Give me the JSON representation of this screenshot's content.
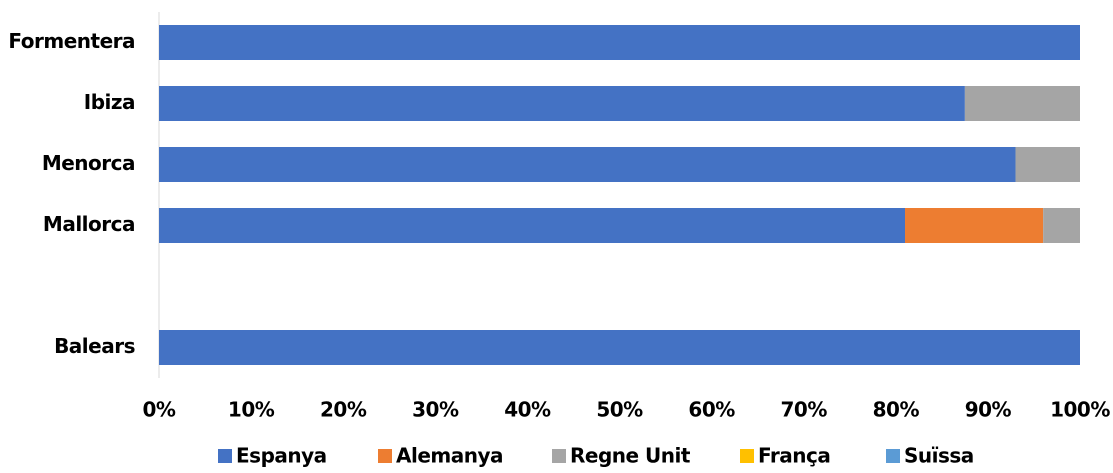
{
  "chart_data": {
    "type": "stacked-barh",
    "categories": [
      "Formentera",
      "Ibiza",
      "Menorca",
      "Mallorca",
      null,
      "Balears"
    ],
    "series": [
      {
        "name": "Espanya",
        "color": "#4472c4",
        "values": [
          100,
          87.5,
          93,
          81,
          null,
          100
        ]
      },
      {
        "name": "Alemanya",
        "color": "#ed7d31",
        "values": [
          0,
          0,
          0,
          15,
          null,
          0
        ]
      },
      {
        "name": "Regne Unit",
        "color": "#a5a5a5",
        "values": [
          0,
          12.5,
          7,
          4,
          null,
          0
        ]
      },
      {
        "name": "França",
        "color": "#ffc000",
        "values": [
          0,
          0,
          0,
          0,
          null,
          0
        ]
      },
      {
        "name": "Suïssa",
        "color": "#5b9bd5",
        "values": [
          0,
          0,
          0,
          0,
          null,
          0
        ]
      }
    ],
    "xlim": [
      0,
      100
    ],
    "xticks": [
      {
        "value": 0,
        "label": "0%"
      },
      {
        "value": 10,
        "label": "10%"
      },
      {
        "value": 20,
        "label": "20%"
      },
      {
        "value": 30,
        "label": "30%"
      },
      {
        "value": 40,
        "label": "40%"
      },
      {
        "value": 50,
        "label": "50%"
      },
      {
        "value": 60,
        "label": "60%"
      },
      {
        "value": 70,
        "label": "70%"
      },
      {
        "value": 80,
        "label": "80%"
      },
      {
        "value": 90,
        "label": "90%"
      },
      {
        "value": 100,
        "label": "100%"
      }
    ],
    "legend": "bottom"
  }
}
